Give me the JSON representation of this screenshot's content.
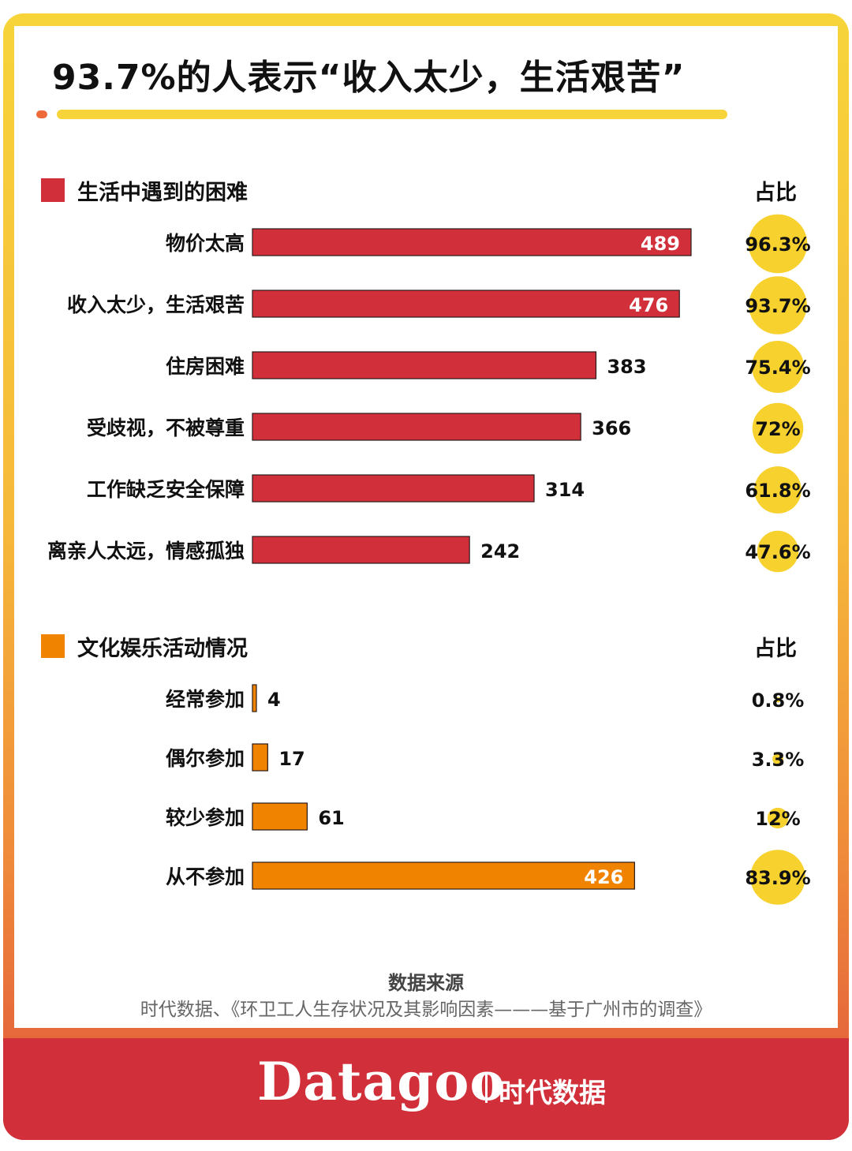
{
  "title": "93.7%的人表示“收入太少，生活艰苦”",
  "colors": {
    "section1": "#d12f3a",
    "section2": "#f08300",
    "circle": "#f7d12e",
    "frame_top": "#f7d43a",
    "frame_bottom": "#e0563c",
    "footer": "#d12f3a"
  },
  "chart_data": [
    {
      "type": "bar",
      "orientation": "horizontal",
      "title": "生活中遇到的困难",
      "ratio_header": "占比",
      "categories": [
        "物价太高",
        "收入太少，生活艰苦",
        "住房困难",
        "受歧视，不被尊重",
        "工作缺乏安全保障",
        "离亲人太远，情感孤独"
      ],
      "values": [
        489,
        476,
        383,
        366,
        314,
        242
      ],
      "value_labels": [
        "489",
        "476",
        "383",
        "366",
        "314",
        "242"
      ],
      "ratios": [
        96.3,
        93.7,
        75.4,
        72,
        61.8,
        47.6
      ],
      "ratio_labels": [
        "96.3%",
        "93.7%",
        "75.4%",
        "72%",
        "61.8%",
        "47.6%"
      ],
      "color": "#d12f3a",
      "xlim": [
        0,
        489
      ]
    },
    {
      "type": "bar",
      "orientation": "horizontal",
      "title": "文化娱乐活动情况",
      "ratio_header": "占比",
      "categories": [
        "经常参加",
        "偶尔参加",
        "较少参加",
        "从不参加"
      ],
      "values": [
        4,
        17,
        61,
        426
      ],
      "value_labels": [
        "4",
        "17",
        "61",
        "426"
      ],
      "ratios": [
        0.8,
        3.3,
        12,
        83.9
      ],
      "ratio_labels": [
        "0.8%",
        "3.3%",
        "12%",
        "83.9%"
      ],
      "color": "#f08300",
      "xlim": [
        0,
        489
      ]
    }
  ],
  "source": {
    "title": "数据来源",
    "text": "时代数据、《环卫工人生存状况及其影响因素———基于广州市的调查》"
  },
  "brand": {
    "logo": "Datagoo",
    "subtitle": "时代数据"
  }
}
